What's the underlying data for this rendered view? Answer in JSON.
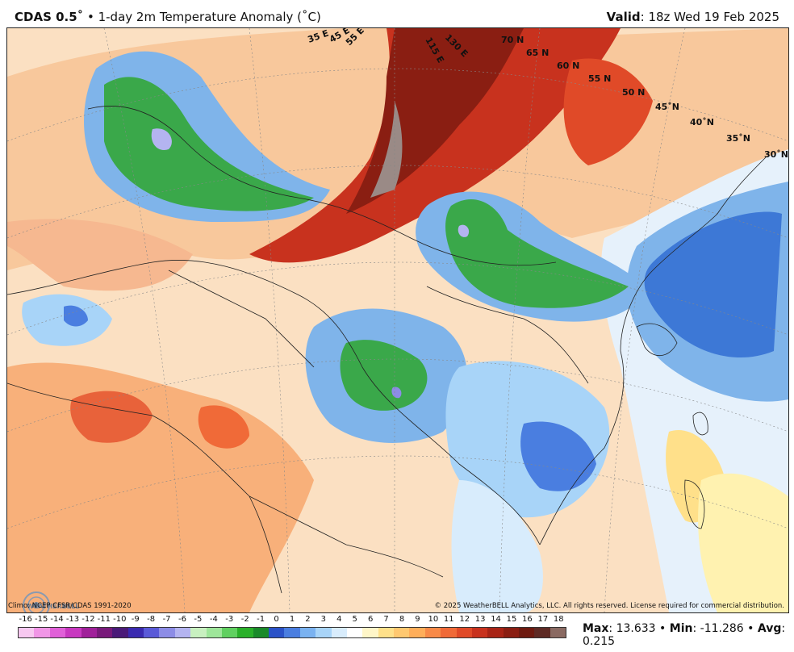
{
  "header": {
    "model": "CDAS 0.5˚",
    "separator": "•",
    "field": "1-day 2m Temperature Anomaly (˚C)",
    "valid_label": "Valid",
    "valid_time": "18z Wed 19 Feb 2025"
  },
  "map": {
    "lat_labels": [
      "70 N",
      "65 N",
      "60 N",
      "55 N",
      "50 N",
      "45˚N",
      "40˚N",
      "35˚N",
      "30˚N"
    ],
    "lon_labels": [
      "35 E",
      "45 E",
      "55 E",
      "115 E",
      "130 E"
    ],
    "logo_text": "WEATHERBELL"
  },
  "footer": {
    "climo": "Climo: NCEP CFSR/CDAS 1991-2020",
    "copyright": "© 2025 WeatherBELL Analytics, LLC. All rights reserved. License required for commercial distribution."
  },
  "colorbar": {
    "ticks": [
      "-16",
      "-15",
      "-14",
      "-13",
      "-12",
      "-11",
      "-10",
      "-9",
      "-8",
      "-7",
      "-6",
      "-5",
      "-4",
      "-3",
      "-2",
      "-1",
      "0",
      "1",
      "2",
      "3",
      "4",
      "5",
      "6",
      "7",
      "8",
      "9",
      "10",
      "11",
      "12",
      "13",
      "14",
      "15",
      "16",
      "17",
      "18"
    ],
    "colors": [
      "#f7c8f0",
      "#f096e6",
      "#e060d8",
      "#c838c0",
      "#a0209a",
      "#781a7a",
      "#4a1a78",
      "#3a2ab0",
      "#5a5ad8",
      "#8c8ce6",
      "#b4b4f0",
      "#c8f0c0",
      "#9ee69a",
      "#60d060",
      "#2ab02a",
      "#1a8a2a",
      "#2a52c8",
      "#4a7ee0",
      "#7ab2f0",
      "#a8d4f8",
      "#d8ecfc",
      "#ffffff",
      "#fff6c8",
      "#ffe08a",
      "#ffc870",
      "#ffae5a",
      "#f88a48",
      "#f06a38",
      "#e04a28",
      "#c8321e",
      "#a82416",
      "#8a1e12",
      "#6e1a10",
      "#5e2a24",
      "#8a6a62"
    ],
    "min_value": -16,
    "max_value": 18
  },
  "stats": {
    "max_label": "Max",
    "max_value": "13.633",
    "min_label": "Min",
    "min_value": "-11.286",
    "avg_label": "Avg",
    "avg_value": "0.215",
    "sep": "•"
  }
}
